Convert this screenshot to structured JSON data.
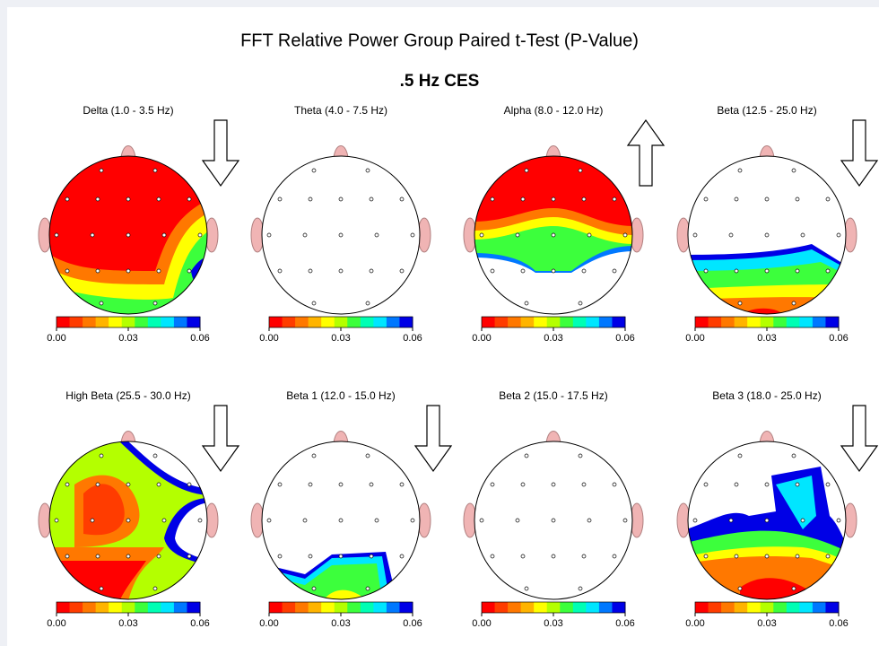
{
  "figure": {
    "title": "FFT Relative Power Group Paired t-Test  (P-Value)",
    "subtitle": ".5 Hz CES",
    "colorbar": {
      "ticks": [
        "0.00",
        "0.03",
        "0.06"
      ],
      "colors": [
        "#ff0000",
        "#ff3c00",
        "#ff7800",
        "#ffb400",
        "#ffff00",
        "#b4ff00",
        "#3cff3c",
        "#00ffb4",
        "#00e6ff",
        "#0078ff",
        "#0000e6"
      ]
    },
    "panels": [
      {
        "label": "Delta (1.0 - 3.5 Hz)",
        "arrow": "down"
      },
      {
        "label": "Theta (4.0 - 7.5 Hz)",
        "arrow": "none"
      },
      {
        "label": "Alpha (8.0 - 12.0 Hz)",
        "arrow": "up"
      },
      {
        "label": "Beta (12.5 - 25.0 Hz)",
        "arrow": "down"
      },
      {
        "label": "High Beta (25.5 - 30.0 Hz)",
        "arrow": "down"
      },
      {
        "label": "Beta 1 (12.0 - 15.0 Hz)",
        "arrow": "down"
      },
      {
        "label": "Beta 2 (15.0 - 17.5 Hz)",
        "arrow": "none"
      },
      {
        "label": "Beta 3 (18.0 - 25.0 Hz)",
        "arrow": "down"
      }
    ]
  }
}
